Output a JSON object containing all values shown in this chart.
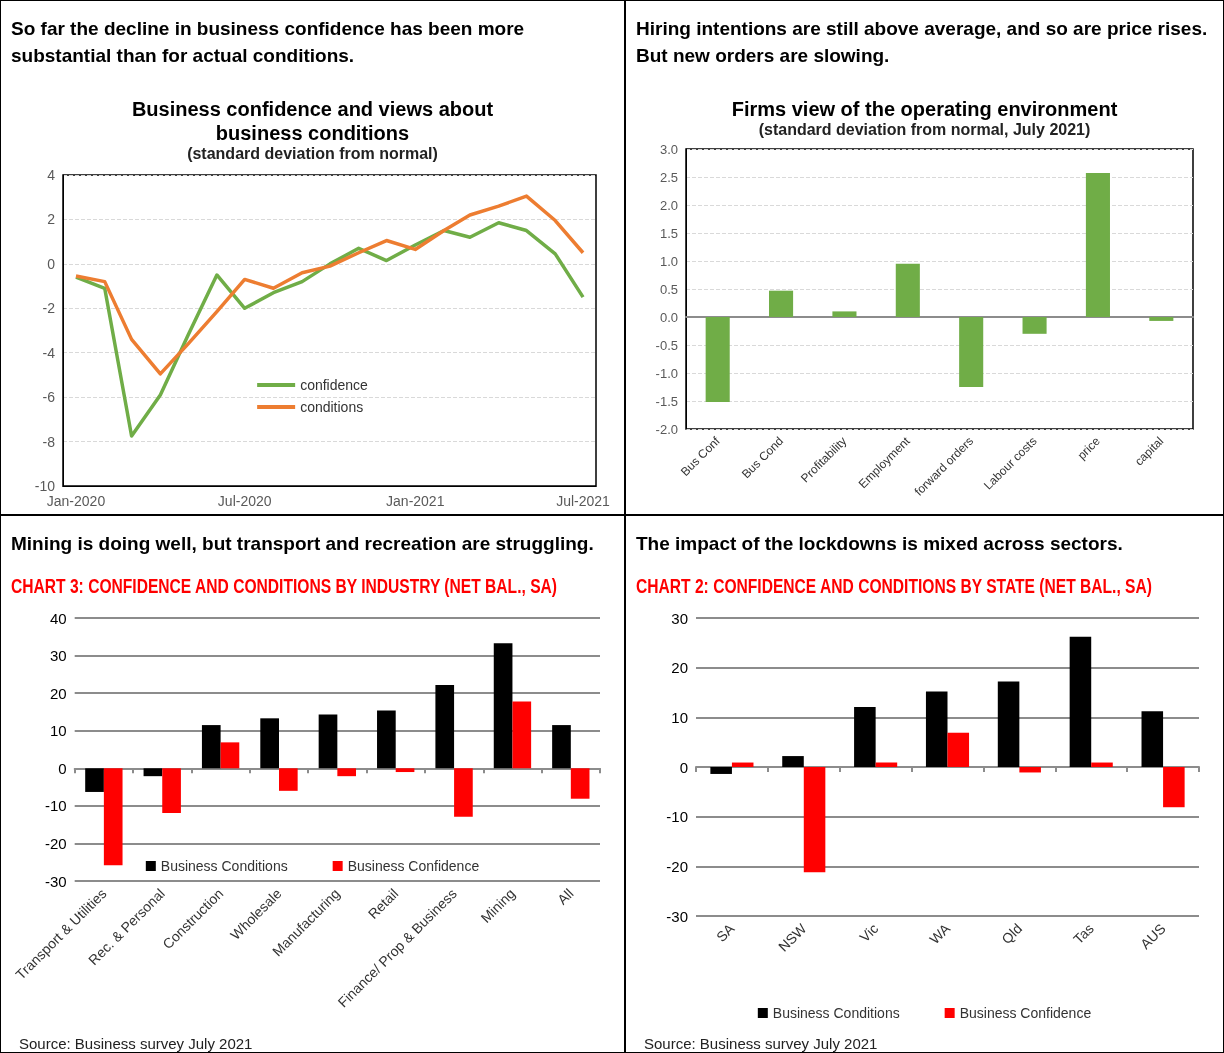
{
  "chart_data": [
    {
      "type": "line",
      "title": "So far the decline in business confidence has been more substantial than for actual conditions.",
      "subtitle": "Business confidence and views about business conditions",
      "annotations": [
        "(standard deviation from normal)"
      ],
      "x": [
        "2020-01",
        "2020-02",
        "2020-03",
        "2020-04",
        "2020-05",
        "2020-06",
        "2020-07",
        "2020-08",
        "2020-09",
        "2020-10",
        "2020-11",
        "2020-12",
        "2021-01",
        "2021-02",
        "2021-03",
        "2021-04",
        "2021-05",
        "2021-06",
        "2021-07"
      ],
      "series": [
        {
          "name": "confidence",
          "color": "#70ad47",
          "values": [
            -0.6,
            -1.1,
            -7.75,
            -5.9,
            -3.2,
            -0.5,
            -2.0,
            -1.3,
            -0.8,
            0.0,
            0.7,
            0.15,
            0.85,
            1.5,
            1.2,
            1.85,
            1.5,
            0.45,
            -1.5
          ]
        },
        {
          "name": "conditions",
          "color": "#ed7d31",
          "values": [
            -0.55,
            -0.8,
            -3.4,
            -4.95,
            -3.6,
            -2.15,
            -0.7,
            -1.1,
            -0.4,
            -0.1,
            0.5,
            1.05,
            0.65,
            1.5,
            2.2,
            2.6,
            3.05,
            1.95,
            0.5
          ]
        }
      ],
      "xlim": [
        "2019-12-18",
        "2021-07-15"
      ],
      "xticks": [
        {
          "value": "2020-01",
          "label": "Jan-2020"
        },
        {
          "value": "2020-07",
          "label": "Jul-2020"
        },
        {
          "value": "2021-01",
          "label": "Jan-2021"
        },
        {
          "value": "2021-07",
          "label": "Jul-2021"
        }
      ],
      "ylim": [
        -10,
        4
      ],
      "yticks": [
        -10,
        -8,
        -6,
        -4,
        -2,
        0,
        2,
        4
      ],
      "grid": "y",
      "legend": "bottom",
      "marker": "none"
    },
    {
      "type": "bar",
      "title": "Hiring intentions are still above average, and so are price rises. But new orders are slowing.",
      "subtitle": "Firms view of the operating environment",
      "annotations": [
        "(standard deviation from normal, July 2021)"
      ],
      "categories": [
        "Bus Conf",
        "Bus Cond",
        "Profitability",
        "Employment",
        "forward orders",
        "Labour costs",
        "price",
        "capital"
      ],
      "values": [
        -1.52,
        0.47,
        0.1,
        0.95,
        -1.25,
        -0.3,
        2.57,
        -0.07
      ],
      "color": "#70ad47",
      "ylim": [
        -2,
        3
      ],
      "yticks": [
        {
          "value": -2,
          "label": "-2.0"
        },
        -1.5,
        {
          "value": -1,
          "label": "-1.0"
        },
        -0.5,
        {
          "value": 0,
          "label": "0.0"
        },
        0.5,
        {
          "value": 1,
          "label": "1.0"
        },
        1.5,
        {
          "value": 2,
          "label": "2.0"
        },
        2.5,
        {
          "value": 3,
          "label": "3.0"
        }
      ],
      "grid": "y"
    },
    {
      "type": "bar",
      "title": "Mining is doing well, but transport and recreation are struggling.",
      "subtitle": "CHART 3: CONFIDENCE AND CONDITIONS BY INDUSTRY (NET BAL., SA)",
      "annotations": [
        "Source:  Business survey July 2021"
      ],
      "categories": [
        "Transport & Utilities",
        "Rec. & Personal",
        "Construction",
        "Wholesale",
        "Manufacturing",
        "Retail",
        "Finance/ Prop & Business",
        "Mining",
        "All"
      ],
      "series": [
        {
          "name": "Business Conditions",
          "color": "#000000",
          "values": [
            -6.3,
            -2.1,
            11.5,
            13.3,
            14.3,
            15.4,
            22.2,
            33.3,
            11.5
          ]
        },
        {
          "name": "Business Confidence",
          "color": "#ff0000",
          "values": [
            -25.8,
            -11.9,
            6.9,
            -6,
            -2.1,
            -1,
            -12.9,
            17.8,
            -8.1
          ]
        }
      ],
      "ylim": [
        -30,
        40
      ],
      "yticks": [
        -30,
        -20,
        -10,
        0,
        10,
        20,
        30,
        40
      ],
      "grid": "y",
      "legend": "bottom"
    },
    {
      "type": "bar",
      "title": "The impact of the lockdowns is mixed across sectors.",
      "subtitle": "CHART 2: CONFIDENCE AND CONDITIONS BY STATE (NET BAL., SA)",
      "annotations": [
        "Source:  Business survey July 2021"
      ],
      "categories": [
        "SA",
        "NSW",
        "Vic",
        "WA",
        "Qld",
        "Tas",
        "AUS"
      ],
      "series": [
        {
          "name": "Business Conditions",
          "color": "#000000",
          "values": [
            -1.4,
            2.2,
            12.1,
            15.2,
            17.2,
            26.2,
            11.2
          ]
        },
        {
          "name": "Business Confidence",
          "color": "#ff0000",
          "values": [
            0.9,
            -21.2,
            0.9,
            6.9,
            -1.1,
            0.9,
            -8.1
          ]
        }
      ],
      "ylim": [
        -30,
        30
      ],
      "yticks": [
        -30,
        -20,
        -10,
        0,
        10,
        20,
        30
      ],
      "grid": "y",
      "legend": "bottom"
    }
  ]
}
